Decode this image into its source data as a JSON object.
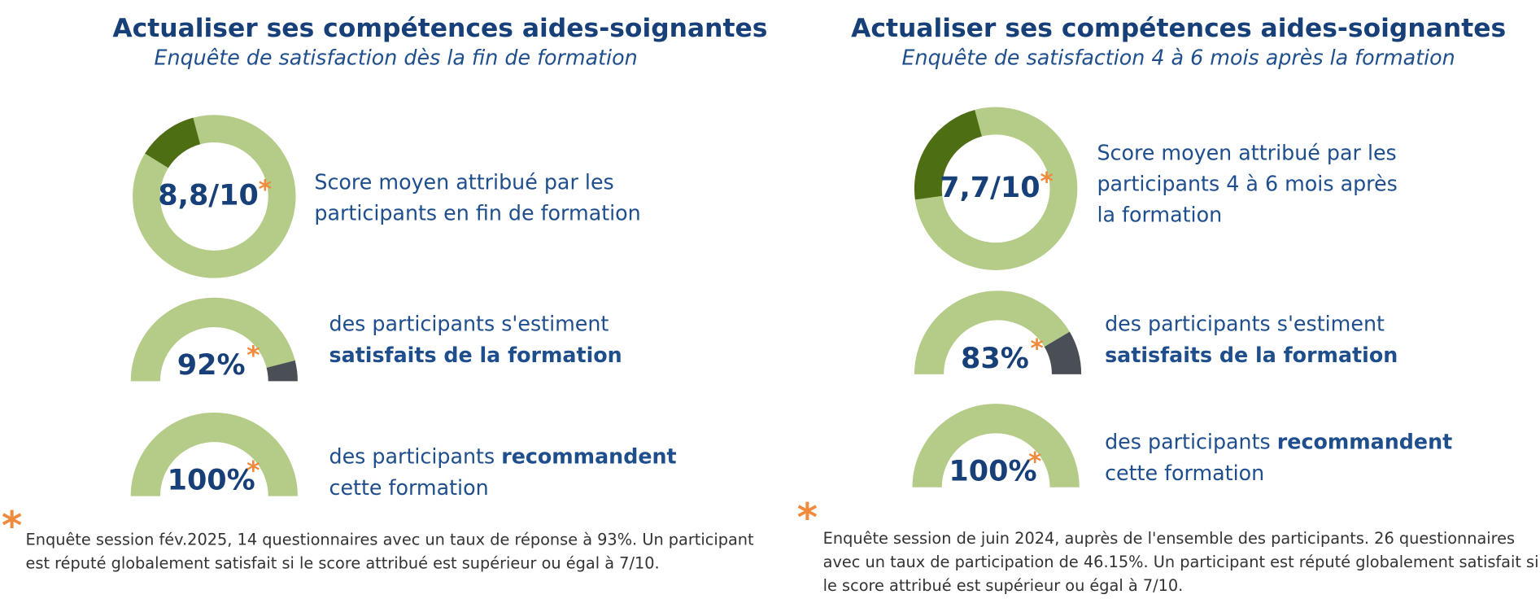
{
  "asterisk": "*",
  "panels": [
    {
      "title": "Actualiser ses compétences aides-soignantes",
      "subtitle": "Enquête de satisfaction dès la fin de formation",
      "score": {
        "value": 8.8,
        "range": [
          0,
          10
        ],
        "label": "8,8/10",
        "text_lines": [
          "Score moyen attribué par les",
          "participants en fin de formation"
        ]
      },
      "satisfied": {
        "value": 92,
        "range": [
          0,
          100
        ],
        "label": "92%",
        "line1": "des participants s'estiment",
        "line2_bold": "satisfaits de la formation"
      },
      "recommend": {
        "value": 100,
        "range": [
          0,
          100
        ],
        "label": "100%",
        "line1_before": "des participants ",
        "line1_bold": "recommandent",
        "line2": "cette formation"
      },
      "footnote_lines": [
        "Enquête session fév.2025, 14 questionnaires avec un taux de réponse à 93%. Un participant",
        "est réputé globalement satisfait si le score attribué est supérieur ou égal à 7/10."
      ]
    },
    {
      "title": "Actualiser ses compétences aides-soignantes",
      "subtitle": "Enquête de satisfaction 4 à 6 mois après la formation",
      "score": {
        "value": 7.7,
        "range": [
          0,
          10
        ],
        "label": "7,7/10",
        "text_lines": [
          "Score moyen attribué par les",
          "participants  4 à 6 mois après",
          "la formation"
        ]
      },
      "satisfied": {
        "value": 83,
        "range": [
          0,
          100
        ],
        "label": "83%",
        "line1": "des participants s'estiment",
        "line2_bold": "satisfaits de la formation"
      },
      "recommend": {
        "value": 100,
        "range": [
          0,
          100
        ],
        "label": "100%",
        "line1_before": "des participants ",
        "line1_bold": "recommandent",
        "line2": "cette formation"
      },
      "footnote_lines": [
        "Enquête session de juin 2024, auprès de l'ensemble des participants. 26 questionnaires",
        "avec un taux de participation de 46.15%. Un participant est réputé globalement satisfait si",
        "le score attribué est supérieur ou égal à 7/10."
      ]
    }
  ]
}
